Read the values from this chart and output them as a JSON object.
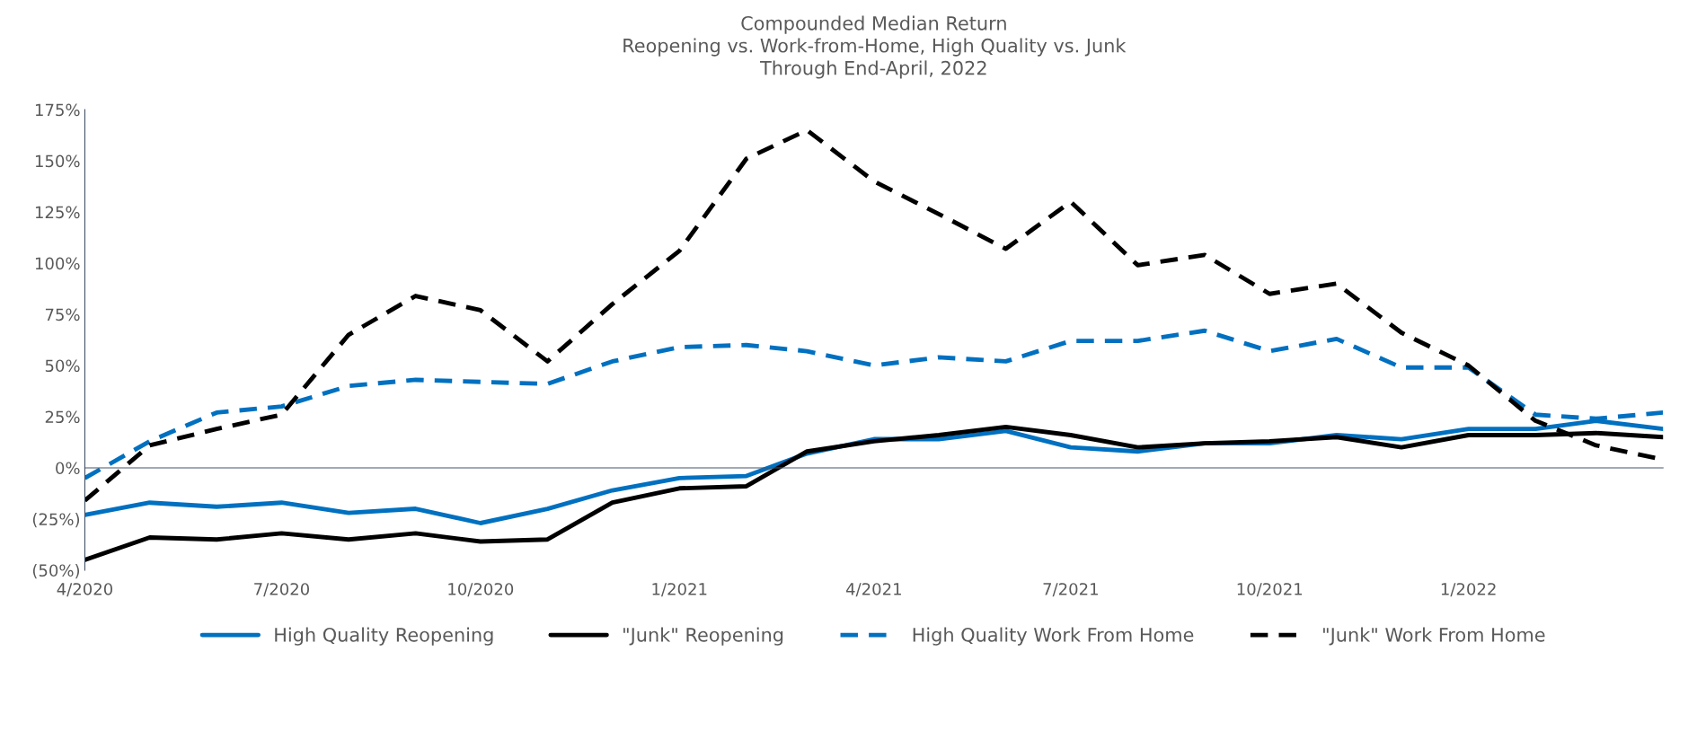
{
  "chart_data": {
    "type": "line",
    "title": "Compounded Median Return\nReopening vs. Work-from-Home, High Quality vs. Junk\nThrough End-April, 2022",
    "x": [
      "2020-04",
      "2020-05",
      "2020-06",
      "2020-07",
      "2020-08",
      "2020-09",
      "2020-10",
      "2020-11",
      "2020-12",
      "2021-01",
      "2021-02",
      "2021-03",
      "2021-04",
      "2021-05",
      "2021-06",
      "2021-07",
      "2021-08",
      "2021-09",
      "2021-10",
      "2021-11",
      "2021-12",
      "2022-01",
      "2022-02",
      "2022-03",
      "2022-04"
    ],
    "series": [
      {
        "name": "High Quality Reopening",
        "color": "#0070c0",
        "line_style": "solid",
        "values": [
          -23,
          -17,
          -19,
          -17,
          -22,
          -20,
          -27,
          -20,
          -11,
          -5,
          -4,
          7,
          14,
          14,
          18,
          10,
          8,
          12,
          12,
          16,
          14,
          19,
          19,
          23,
          19
        ]
      },
      {
        "name": "\"Junk\" Reopening",
        "color": "#000000",
        "line_style": "solid",
        "values": [
          -45,
          -34,
          -35,
          -32,
          -35,
          -32,
          -36,
          -35,
          -17,
          -10,
          -9,
          8,
          13,
          16,
          20,
          16,
          10,
          12,
          13,
          15,
          10,
          16,
          16,
          17,
          15
        ]
      },
      {
        "name": "High Quality Work From Home",
        "color": "#0070c0",
        "line_style": "dashed",
        "values": [
          -5,
          13,
          27,
          30,
          40,
          43,
          42,
          41,
          52,
          59,
          60,
          57,
          50,
          54,
          52,
          62,
          62,
          67,
          57,
          63,
          49,
          49,
          26,
          24,
          27
        ]
      },
      {
        "name": "\"Junk\" Work From Home",
        "color": "#000000",
        "line_style": "dashed",
        "values": [
          -16,
          11,
          19,
          26,
          65,
          84,
          77,
          52,
          80,
          106,
          151,
          165,
          140,
          124,
          107,
          130,
          99,
          104,
          85,
          90,
          66,
          50,
          23,
          11,
          4
        ]
      }
    ],
    "xlim": [
      "2020-04",
      "2022-04"
    ],
    "xticks": [
      {
        "value": "2020-04",
        "label": "4/2020"
      },
      {
        "value": "2020-07",
        "label": "7/2020"
      },
      {
        "value": "2020-10",
        "label": "10/2020"
      },
      {
        "value": "2021-01",
        "label": "1/2021"
      },
      {
        "value": "2021-04",
        "label": "4/2021"
      },
      {
        "value": "2021-07",
        "label": "7/2021"
      },
      {
        "value": "2021-10",
        "label": "10/2021"
      },
      {
        "value": "2022-01",
        "label": "1/2022"
      }
    ],
    "ylim": [
      -50,
      175
    ],
    "yticks": [
      {
        "value": -50,
        "label": "(50%)"
      },
      {
        "value": -25,
        "label": "(25%)"
      },
      {
        "value": 0,
        "label": "0%"
      },
      {
        "value": 25,
        "label": "25%"
      },
      {
        "value": 50,
        "label": "50%"
      },
      {
        "value": 75,
        "label": "75%"
      },
      {
        "value": 100,
        "label": "100%"
      },
      {
        "value": 125,
        "label": "125%"
      },
      {
        "value": 150,
        "label": "150%"
      },
      {
        "value": 175,
        "label": "175%"
      }
    ],
    "legend": "bottom"
  }
}
